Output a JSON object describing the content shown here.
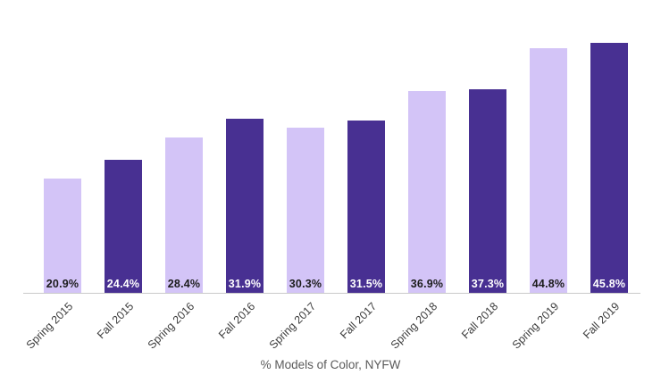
{
  "chart_data": {
    "type": "bar",
    "categories": [
      "Spring 2015",
      "Fall 2015",
      "Spring 2016",
      "Fall 2016",
      "Spring 2017",
      "Fall 2017",
      "Spring 2018",
      "Fall 2018",
      "Spring 2019",
      "Fall 2019"
    ],
    "values": [
      20.9,
      24.4,
      28.4,
      31.9,
      30.3,
      31.5,
      36.9,
      37.3,
      44.8,
      45.8
    ],
    "value_labels": [
      "20.9%",
      "24.4%",
      "28.4%",
      "31.9%",
      "30.3%",
      "31.5%",
      "36.9%",
      "37.3%",
      "44.8%",
      "45.8%"
    ],
    "title": "",
    "xlabel": "% Models of Color, NYFW",
    "ylabel": "",
    "ylim": [
      0,
      50
    ],
    "grid": false,
    "legend": "none",
    "colors": {
      "bar_light": "#d3c4f7",
      "bar_dark": "#483092",
      "label_on_light": "#1c1c1c",
      "label_on_dark": "#ffffff",
      "axis_line": "#c9c9c9",
      "tick_text": "#3d3d3d",
      "axis_title_text": "#5a5a5a"
    }
  }
}
